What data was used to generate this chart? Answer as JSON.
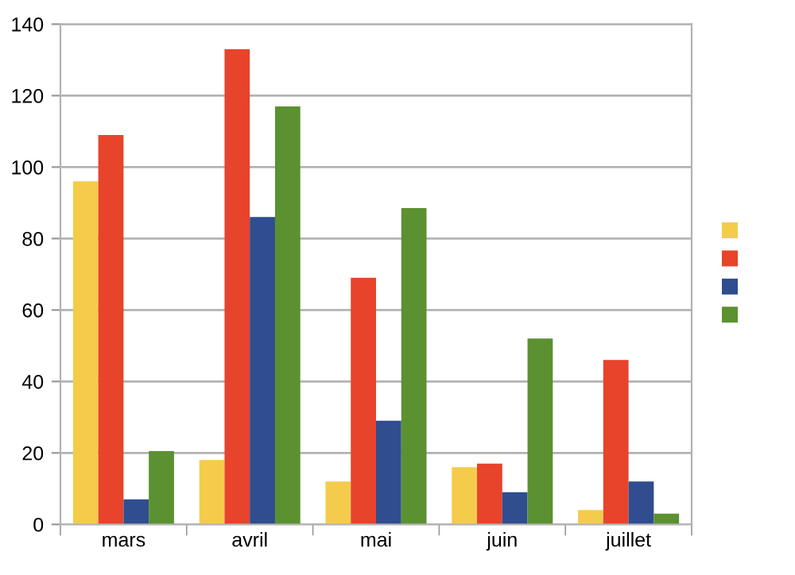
{
  "chart_data": {
    "type": "bar",
    "categories": [
      "mars",
      "avril",
      "mai",
      "juin",
      "juillet"
    ],
    "series": [
      {
        "color": "#f5cb4b",
        "values": [
          96,
          18,
          12,
          16,
          4
        ]
      },
      {
        "color": "#e8432b",
        "values": [
          109,
          133,
          69,
          17,
          46
        ]
      },
      {
        "color": "#2f4d8f",
        "values": [
          7,
          86,
          29,
          9,
          12
        ]
      },
      {
        "color": "#5b9130",
        "values": [
          20.5,
          117,
          88.5,
          52,
          3
        ]
      }
    ],
    "ylim": [
      0,
      140
    ],
    "yticks": [
      0,
      20,
      40,
      60,
      80,
      100,
      120,
      140
    ],
    "grid": "y"
  }
}
